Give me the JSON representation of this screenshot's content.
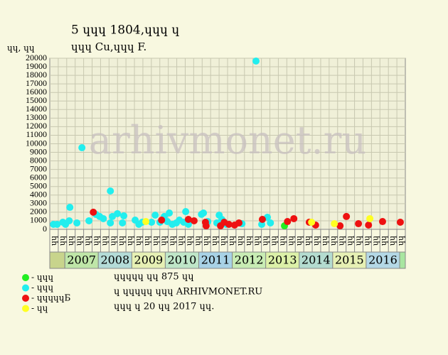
{
  "chart_data": {
    "type": "scatter",
    "title": "5 ɥɥɥ 1804,ɥɥɥ ɥ",
    "subtitle": "ɥɥɥ Cu,ɥɥɥ F.",
    "y_label": "ɥɥ, ɥɥ",
    "watermark": "arhivmonet.ru",
    "xlim": [
      2006.55,
      2017.17
    ],
    "ylim": [
      0,
      20000
    ],
    "yticks": [
      0,
      1000,
      2000,
      3000,
      4000,
      5000,
      6000,
      7000,
      8000,
      9000,
      10000,
      11000,
      12000,
      13000,
      14000,
      15000,
      16000,
      17000,
      18000,
      19000,
      20000
    ],
    "years": [
      "2007",
      "2008",
      "2009",
      "2010",
      "2011",
      "2012",
      "2013",
      "2014",
      "2015",
      "2016"
    ],
    "year_colors": [
      "#bfe6a8",
      "#b4dcd8",
      "#e6f0b4",
      "#bfe6c8",
      "#a8d2e6",
      "#c8ecb4",
      "#dcf0a8",
      "#b4dcd0",
      "#e6f0b4",
      "#b4d8e6"
    ],
    "quarter_labels": [
      "ɥɥ",
      "ɥɥ",
      "ɥɥ",
      "ɥɥ",
      "ɥɥ",
      "ɥɥ",
      "ɥɥ",
      "ɥɥ",
      "ɥɥ",
      "ɥɥ",
      "ɥɥ",
      "ɥɥ",
      "ɥɥ",
      "ɥɥ",
      "ɥɥ",
      "ɥɥ",
      "ɥɥ",
      "ɥɥ",
      "ɥɥ",
      "ɥɥ",
      "ɥɥ",
      "ɥɥ",
      "ɥɥ",
      "ɥɥ",
      "ɥɥ",
      "ɥɥ",
      "ɥɥ",
      "ɥɥ",
      "ɥɥ",
      "ɥɥ",
      "ɥɥ",
      "ɥɥ",
      "ɥɥ",
      "ɥɥ",
      "ɥɥ",
      "ɥɥ",
      "ɥɥ",
      "ɥɥ",
      "ɥɥ",
      "ɥɥ",
      "ɥɥ",
      "ɥɥ"
    ],
    "grid": true,
    "series": [
      {
        "name": "- ɥɥɥ",
        "color": "#22ee22",
        "x": [
          2013.56
        ],
        "values": [
          410
        ]
      },
      {
        "name": "- ɥɥɥ",
        "color": "#22eeee",
        "x": [
          2006.66,
          2006.77,
          2006.94,
          2007.02,
          2007.13,
          2007.15,
          2007.36,
          2007.51,
          2007.72,
          2007.93,
          2008.04,
          2008.15,
          2008.36,
          2008.36,
          2008.42,
          2008.57,
          2008.72,
          2008.76,
          2009.1,
          2009.21,
          2009.31,
          2009.59,
          2009.7,
          2009.84,
          2009.97,
          2010.06,
          2010.12,
          2010.21,
          2010.33,
          2010.42,
          2010.55,
          2010.61,
          2010.69,
          2011.08,
          2011.14,
          2011.27,
          2011.54,
          2011.61,
          2011.69,
          2011.82,
          2012.29,
          2012.71,
          2012.88,
          2013.05,
          2013.14
        ],
        "values": [
          580,
          580,
          830,
          580,
          1000,
          2570,
          750,
          9540,
          1000,
          1740,
          1500,
          1250,
          750,
          4480,
          1500,
          1830,
          750,
          1580,
          1080,
          580,
          830,
          830,
          1660,
          830,
          1500,
          910,
          1910,
          580,
          750,
          1080,
          830,
          2070,
          580,
          1750,
          1910,
          910,
          750,
          1660,
          1160,
          580,
          660,
          19670,
          580,
          1410,
          750
        ]
      },
      {
        "name": "- ɥɥɥɥɥБ",
        "color": "#ee1111",
        "x": [
          2007.85,
          2009.89,
          2010.69,
          2010.86,
          2011.2,
          2011.22,
          2011.65,
          2011.76,
          2011.9,
          2012.07,
          2012.2,
          2012.9,
          2013.65,
          2013.84,
          2014.3,
          2014.49,
          2015.22,
          2015.41,
          2015.77,
          2016.07,
          2016.49,
          2017.02
        ],
        "values": [
          2000,
          1080,
          1160,
          1000,
          830,
          410,
          410,
          830,
          580,
          500,
          750,
          1160,
          910,
          1250,
          830,
          500,
          410,
          1500,
          660,
          500,
          910,
          830
        ]
      },
      {
        "name": "- ɥɥ",
        "color": "#ffff22",
        "x": [
          2009.42,
          2014.37,
          2015.05,
          2016.11
        ],
        "values": [
          910,
          830,
          660,
          1250
        ]
      }
    ],
    "notes": [
      "ɥɥɥɥɥ ɥɥ 875 ɥɥ",
      "ɥ ɥɥɥɥɥ ɥɥɥ ARHIVMONET.RU",
      "ɥɥɥ ɥ 20 ɥɥ 2017 ɥɥ."
    ]
  }
}
